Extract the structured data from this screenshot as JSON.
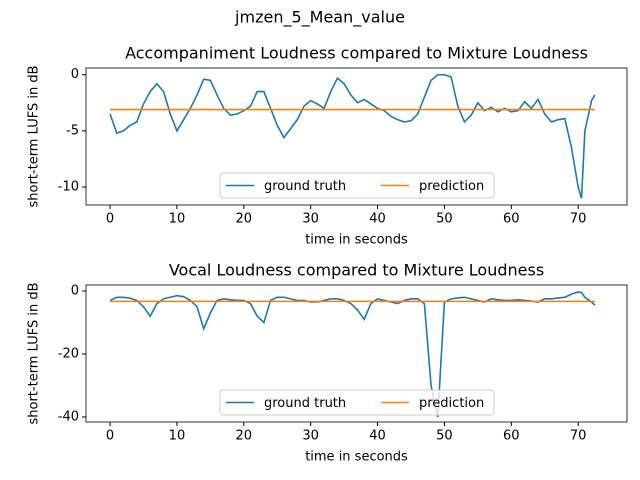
{
  "title": "jmzen_5_Mean_value",
  "chart_data": [
    {
      "type": "line",
      "title": "Accompaniment Loudness compared to Mixture Loudness",
      "x_label": "time in seconds",
      "y_label": "short-term LUFS in dB",
      "x": [
        0,
        1,
        2,
        3,
        4,
        5,
        6,
        7,
        8,
        9,
        10,
        11,
        12,
        13,
        14,
        15,
        16,
        17,
        18,
        19,
        20,
        21,
        22,
        23,
        24,
        25,
        26,
        27,
        28,
        29,
        30,
        31,
        32,
        33,
        34,
        35,
        36,
        37,
        38,
        39,
        40,
        41,
        42,
        43,
        44,
        45,
        46,
        47,
        48,
        49,
        50,
        51,
        52,
        53,
        54,
        55,
        56,
        57,
        58,
        59,
        60,
        61,
        62,
        63,
        64,
        65,
        66,
        67,
        68,
        69,
        70,
        70.5,
        71,
        72,
        72.5
      ],
      "series": [
        {
          "name": "ground truth",
          "color": "#1f77b4",
          "values": [
            -3.5,
            -5.2,
            -5.0,
            -4.5,
            -4.2,
            -2.6,
            -1.5,
            -0.8,
            -1.5,
            -3.5,
            -5.0,
            -4.0,
            -3.0,
            -1.8,
            -0.4,
            -0.5,
            -1.8,
            -3.0,
            -3.6,
            -3.5,
            -3.2,
            -2.8,
            -1.5,
            -1.5,
            -3.0,
            -4.5,
            -5.6,
            -4.8,
            -4.0,
            -2.8,
            -2.3,
            -2.6,
            -3.0,
            -1.5,
            -0.3,
            -0.8,
            -1.8,
            -2.5,
            -2.2,
            -2.6,
            -3.0,
            -3.2,
            -3.7,
            -4.0,
            -4.2,
            -4.1,
            -3.5,
            -2.0,
            -0.5,
            0,
            0,
            -0.2,
            -2.8,
            -4.2,
            -3.6,
            -2.5,
            -3.2,
            -2.9,
            -3.3,
            -3.0,
            -3.3,
            -3.2,
            -2.4,
            -3.0,
            -2.2,
            -3.5,
            -4.2,
            -4.0,
            -3.9,
            -6.5,
            -10.0,
            -11.0,
            -5.0,
            -2.3,
            -1.8
          ]
        },
        {
          "name": "prediction",
          "color": "#ff7f0e",
          "x": [
            0,
            72.5
          ],
          "values": [
            -3.1,
            -3.1
          ]
        }
      ],
      "xlim": [
        -3.6,
        77.3
      ],
      "xticks": [
        0,
        10,
        20,
        30,
        40,
        50,
        60,
        70
      ],
      "ylim": [
        -11.6,
        0.6
      ],
      "yticks": [
        -10,
        -5,
        0
      ],
      "legend": "lower center",
      "grid": false
    },
    {
      "type": "line",
      "title": "Vocal Loudness compared to Mixture Loudness",
      "x_label": "time in seconds",
      "y_label": "short-term LUFS in dB",
      "x": [
        0,
        1,
        2,
        3,
        4,
        5,
        6,
        7,
        8,
        9,
        10,
        11,
        12,
        13,
        14,
        15,
        16,
        17,
        18,
        19,
        20,
        21,
        22,
        23,
        24,
        25,
        26,
        27,
        28,
        29,
        30,
        31,
        32,
        33,
        34,
        35,
        36,
        37,
        38,
        39,
        40,
        41,
        42,
        43,
        44,
        45,
        46,
        47,
        48,
        49,
        50,
        51,
        52,
        53,
        54,
        55,
        56,
        57,
        58,
        59,
        60,
        61,
        62,
        63,
        64,
        65,
        66,
        67,
        68,
        69,
        70,
        70.5,
        71,
        72,
        72.5
      ],
      "series": [
        {
          "name": "ground truth",
          "color": "#1f77b4",
          "values": [
            -3,
            -2,
            -2,
            -2.3,
            -3,
            -5,
            -8,
            -4,
            -2.5,
            -2,
            -1.5,
            -1.8,
            -3,
            -5,
            -12,
            -7,
            -3,
            -2.5,
            -2.8,
            -3,
            -3,
            -4,
            -8,
            -10,
            -3,
            -2,
            -2,
            -2.5,
            -3,
            -3,
            -3.5,
            -3.5,
            -3,
            -2.5,
            -2.5,
            -3,
            -4,
            -6,
            -9,
            -4,
            -2.5,
            -3,
            -3.5,
            -4,
            -3,
            -2.5,
            -2.5,
            -4,
            -30,
            -40,
            -3.5,
            -2.5,
            -2.2,
            -2,
            -2.5,
            -3,
            -3.5,
            -2.5,
            -2.8,
            -3,
            -3,
            -2.8,
            -3,
            -3.2,
            -3.5,
            -2.5,
            -2.5,
            -2.2,
            -2,
            -1,
            -0.3,
            -0.5,
            -2,
            -3.5,
            -4.5
          ]
        },
        {
          "name": "prediction",
          "color": "#ff7f0e",
          "x": [
            0,
            72.5
          ],
          "values": [
            -3.3,
            -3.3
          ]
        }
      ],
      "xlim": [
        -3.6,
        77.3
      ],
      "xticks": [
        0,
        10,
        20,
        30,
        40,
        50,
        60,
        70
      ],
      "ylim": [
        -41.6,
        1.9
      ],
      "yticks": [
        -40,
        -20,
        0
      ],
      "legend": "lower center",
      "grid": false
    }
  ]
}
